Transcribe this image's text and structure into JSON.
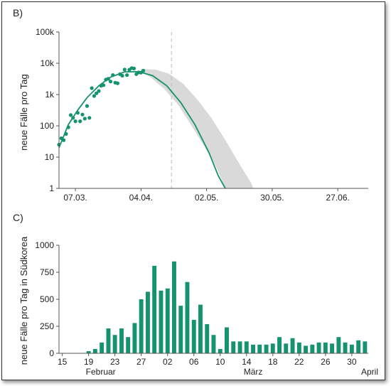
{
  "colors": {
    "accent": "#15926e",
    "band": "#d9d9d9",
    "axis": "#555555"
  },
  "chart_data": [
    {
      "panel": "B)",
      "type": "scatter",
      "yscale": "log",
      "ylabel": "neue Fälle pro Tag",
      "ylim": [
        1,
        100000
      ],
      "y_ticks": [
        1,
        10,
        100,
        1000,
        10000,
        100000
      ],
      "y_tick_labels": [
        "1",
        "10",
        "100",
        "1k",
        "10k",
        "100k"
      ],
      "x_ticks": [
        "2020-03-07",
        "2020-04-04",
        "2020-05-02",
        "2020-05-30",
        "2020-06-27"
      ],
      "x_tick_labels": [
        "07.03.",
        "04.04.",
        "02.05.",
        "30.05.",
        "27.06."
      ],
      "xlim": [
        "2020-02-29",
        "2020-07-10"
      ],
      "vline": "2020-04-17",
      "points": [
        {
          "x": "2020-02-29",
          "y": 25
        },
        {
          "x": "2020-03-01",
          "y": 40
        },
        {
          "x": "2020-03-02",
          "y": 35
        },
        {
          "x": "2020-03-03",
          "y": 55
        },
        {
          "x": "2020-03-04",
          "y": 90
        },
        {
          "x": "2020-03-05",
          "y": 220
        },
        {
          "x": "2020-03-06",
          "y": 180
        },
        {
          "x": "2020-03-07",
          "y": 140
        },
        {
          "x": "2020-03-08",
          "y": 260
        },
        {
          "x": "2020-03-09",
          "y": 140
        },
        {
          "x": "2020-03-10",
          "y": 230
        },
        {
          "x": "2020-03-11",
          "y": 170
        },
        {
          "x": "2020-03-12",
          "y": 430
        },
        {
          "x": "2020-03-13",
          "y": 180
        },
        {
          "x": "2020-03-14",
          "y": 1600
        },
        {
          "x": "2020-03-15",
          "y": 900
        },
        {
          "x": "2020-03-16",
          "y": 1100
        },
        {
          "x": "2020-03-17",
          "y": 1300
        },
        {
          "x": "2020-03-18",
          "y": 1900
        },
        {
          "x": "2020-03-19",
          "y": 2000
        },
        {
          "x": "2020-03-20",
          "y": 3000
        },
        {
          "x": "2020-03-21",
          "y": 3200
        },
        {
          "x": "2020-03-22",
          "y": 2600
        },
        {
          "x": "2020-03-23",
          "y": 4200
        },
        {
          "x": "2020-03-24",
          "y": 2400
        },
        {
          "x": "2020-03-25",
          "y": 2300
        },
        {
          "x": "2020-03-26",
          "y": 4500
        },
        {
          "x": "2020-03-27",
          "y": 4000
        },
        {
          "x": "2020-03-28",
          "y": 6300
        },
        {
          "x": "2020-03-29",
          "y": 4200
        },
        {
          "x": "2020-03-30",
          "y": 6200
        },
        {
          "x": "2020-03-31",
          "y": 7000
        },
        {
          "x": "2020-04-01",
          "y": 6800
        },
        {
          "x": "2020-04-02",
          "y": 4500
        },
        {
          "x": "2020-04-03",
          "y": 5100
        },
        {
          "x": "2020-04-04",
          "y": 5000
        },
        {
          "x": "2020-04-05",
          "y": 5800
        }
      ],
      "fit_line": [
        {
          "x": "2020-02-29",
          "y": 20
        },
        {
          "x": "2020-03-04",
          "y": 110
        },
        {
          "x": "2020-03-08",
          "y": 320
        },
        {
          "x": "2020-03-12",
          "y": 800
        },
        {
          "x": "2020-03-17",
          "y": 1900
        },
        {
          "x": "2020-03-22",
          "y": 3600
        },
        {
          "x": "2020-03-28",
          "y": 5300
        },
        {
          "x": "2020-04-03",
          "y": 5400
        },
        {
          "x": "2020-04-09",
          "y": 4000
        },
        {
          "x": "2020-04-15",
          "y": 1900
        },
        {
          "x": "2020-04-21",
          "y": 550
        },
        {
          "x": "2020-04-27",
          "y": 110
        },
        {
          "x": "2020-05-03",
          "y": 14
        },
        {
          "x": "2020-05-07",
          "y": 2.5
        },
        {
          "x": "2020-05-10",
          "y": 1
        }
      ],
      "band_upper": [
        {
          "x": "2020-04-04",
          "y": 6500
        },
        {
          "x": "2020-04-10",
          "y": 6300
        },
        {
          "x": "2020-04-16",
          "y": 4600
        },
        {
          "x": "2020-04-22",
          "y": 2200
        },
        {
          "x": "2020-04-28",
          "y": 700
        },
        {
          "x": "2020-05-04",
          "y": 180
        },
        {
          "x": "2020-05-10",
          "y": 35
        },
        {
          "x": "2020-05-16",
          "y": 6
        },
        {
          "x": "2020-05-21",
          "y": 1.5
        },
        {
          "x": "2020-05-22",
          "y": 1
        }
      ],
      "band_lower": [
        {
          "x": "2020-05-10",
          "y": 1
        },
        {
          "x": "2020-05-06",
          "y": 5
        },
        {
          "x": "2020-05-01",
          "y": 22
        },
        {
          "x": "2020-04-26",
          "y": 90
        },
        {
          "x": "2020-04-20",
          "y": 450
        },
        {
          "x": "2020-04-14",
          "y": 1500
        },
        {
          "x": "2020-04-08",
          "y": 3600
        },
        {
          "x": "2020-04-04",
          "y": 5200
        }
      ]
    },
    {
      "panel": "C)",
      "type": "bar",
      "ylabel": "neue Fälle pro Tag in Südkorea",
      "ylim": [
        0,
        1000
      ],
      "y_ticks": [
        0,
        250,
        500,
        750,
        1000
      ],
      "x_tick_labels": [
        "15",
        "19",
        "23",
        "27",
        "02",
        "06",
        "10",
        "14",
        "18",
        "22",
        "26",
        "30"
      ],
      "month_labels": [
        "Februar",
        "März",
        "April"
      ],
      "categories": [
        "15.02.",
        "16.02.",
        "17.02.",
        "18.02.",
        "19.02.",
        "20.02.",
        "21.02.",
        "22.02.",
        "23.02.",
        "24.02.",
        "25.02.",
        "26.02.",
        "27.02.",
        "28.02.",
        "29.02.",
        "01.03.",
        "02.03.",
        "03.03.",
        "04.03.",
        "05.03.",
        "06.03.",
        "07.03.",
        "08.03.",
        "09.03.",
        "10.03.",
        "11.03.",
        "12.03.",
        "13.03.",
        "14.03.",
        "15.03.",
        "16.03.",
        "17.03.",
        "18.03.",
        "19.03.",
        "20.03.",
        "21.03.",
        "22.03.",
        "23.03.",
        "24.03.",
        "25.03.",
        "26.03.",
        "27.03.",
        "28.03.",
        "29.03.",
        "30.03.",
        "31.03.",
        "01.04."
      ],
      "values": [
        0,
        0,
        0,
        0,
        20,
        40,
        100,
        230,
        170,
        230,
        150,
        280,
        500,
        570,
        810,
        580,
        600,
        850,
        440,
        660,
        310,
        450,
        270,
        170,
        40,
        240,
        110,
        110,
        110,
        80,
        80,
        80,
        90,
        150,
        90,
        140,
        100,
        70,
        80,
        100,
        100,
        90,
        150,
        100,
        80,
        120,
        110
      ]
    }
  ]
}
